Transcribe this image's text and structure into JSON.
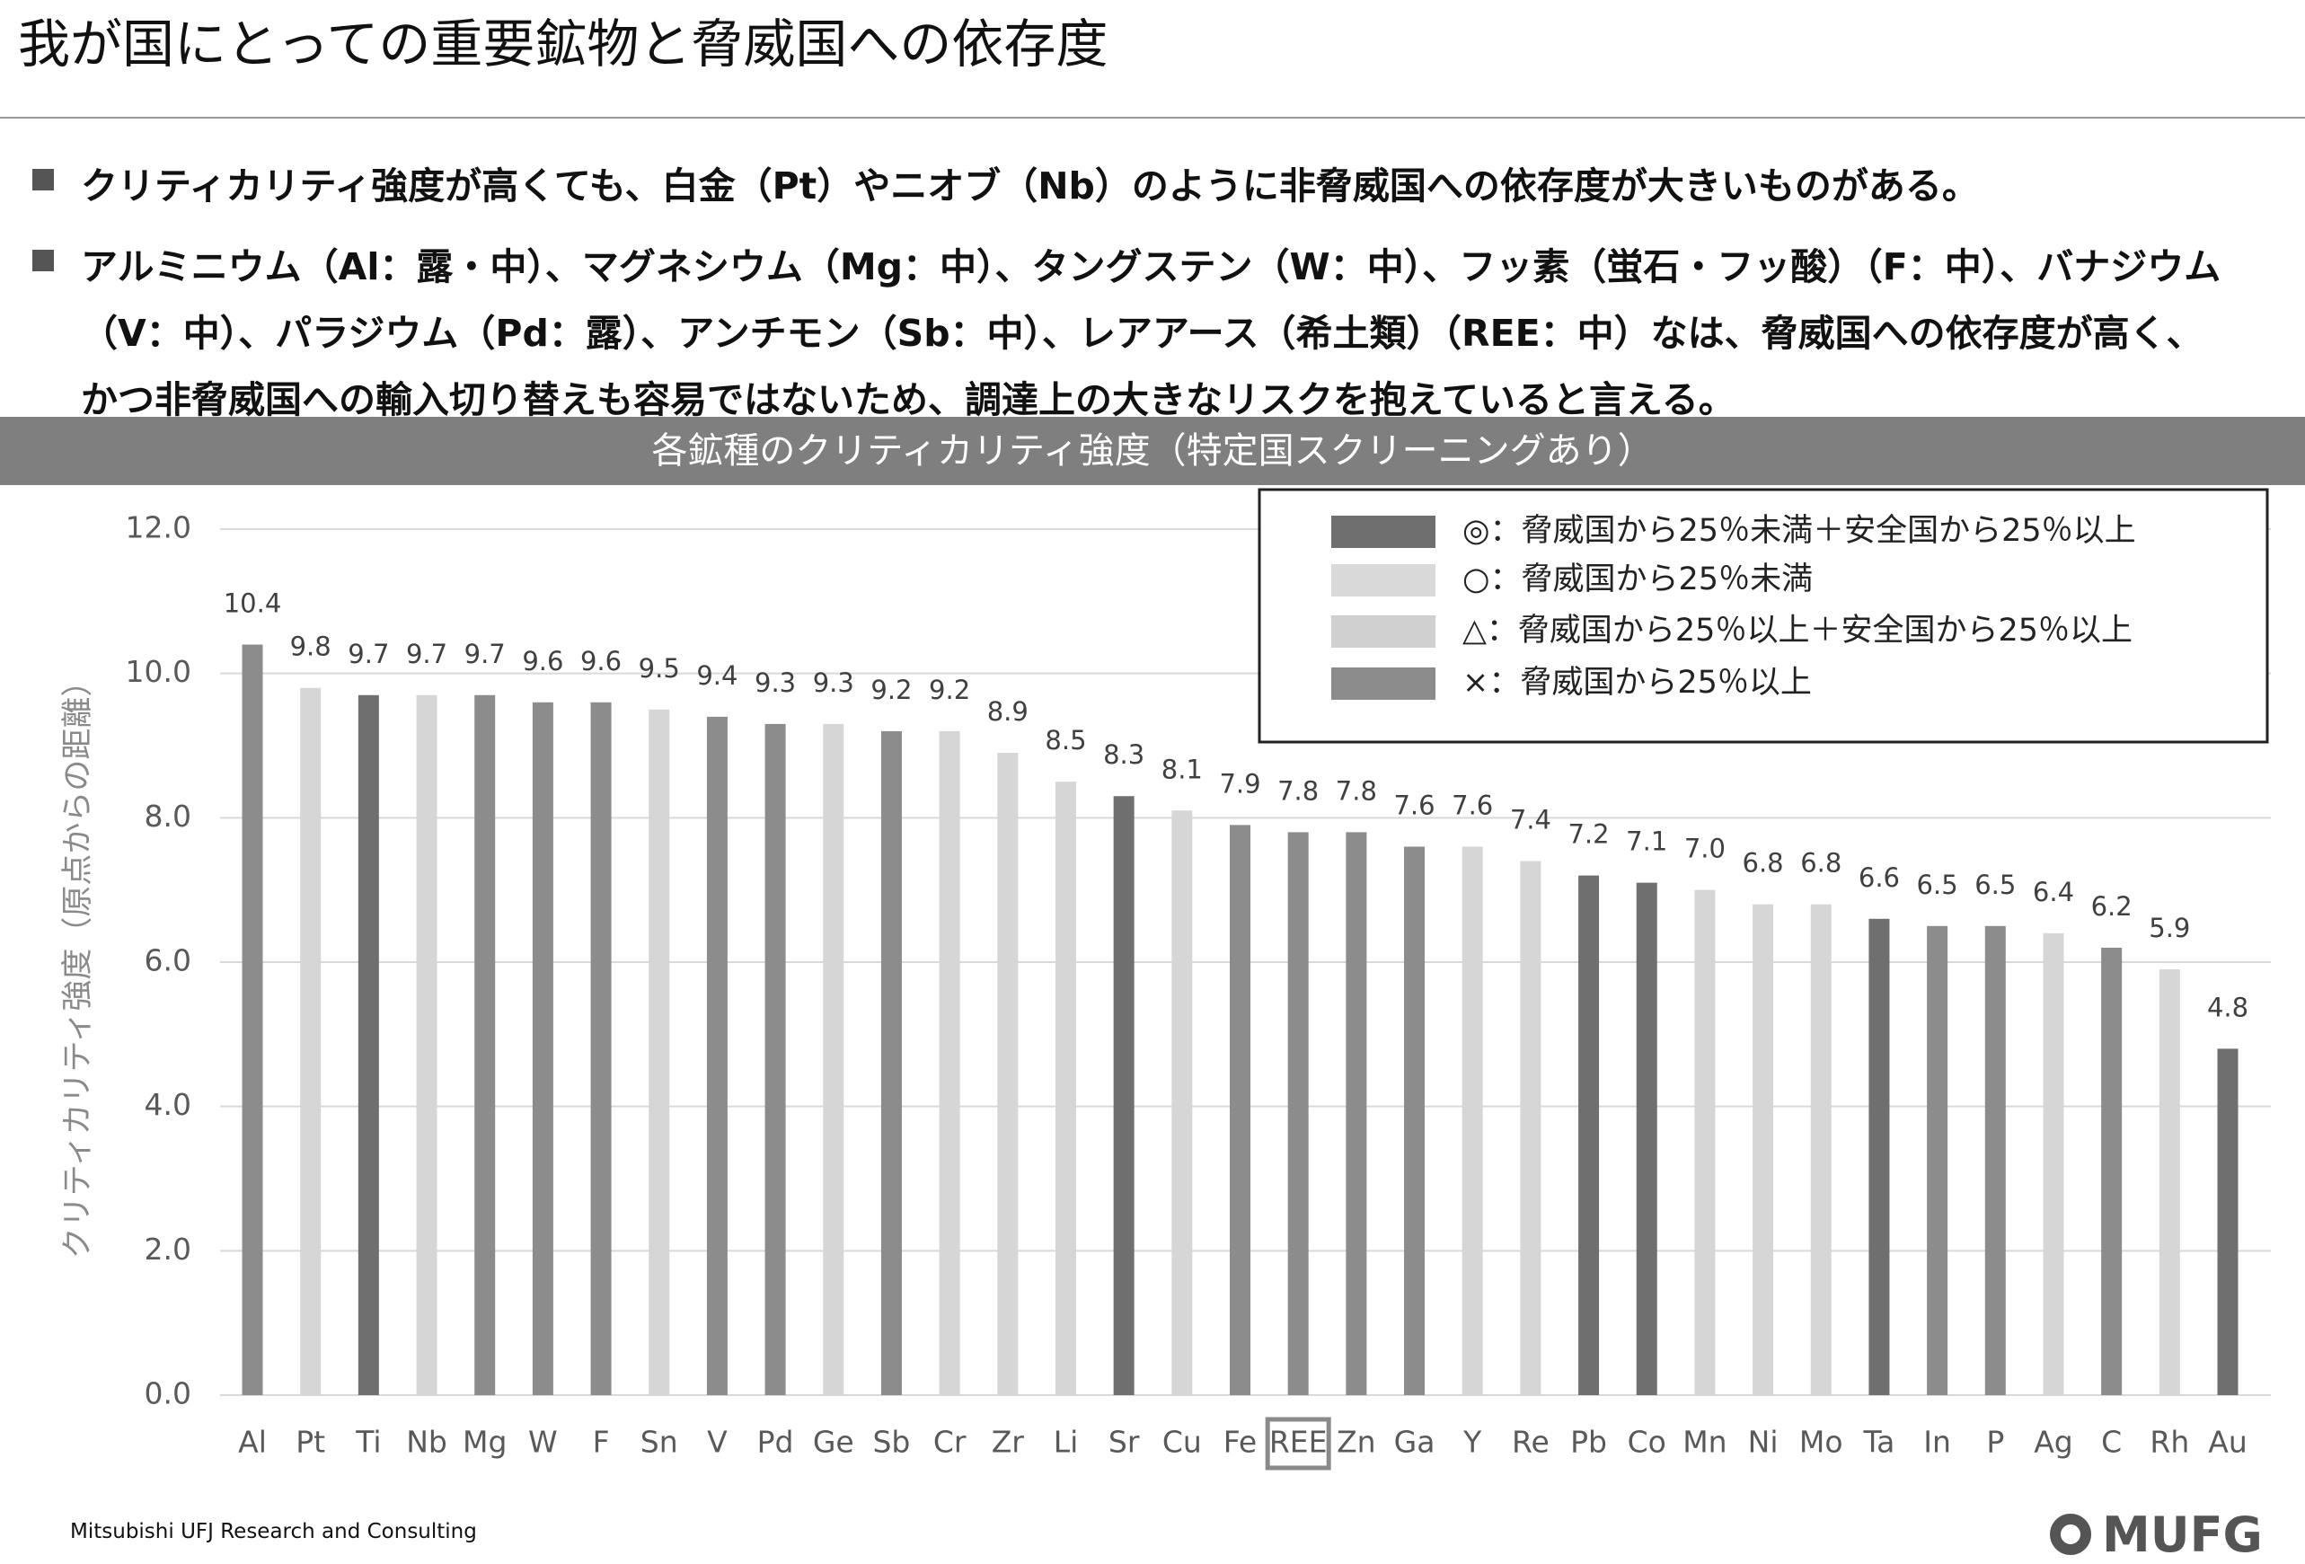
{
  "header": {
    "title": "我が国にとっての重要鉱物と脅威国への依存度"
  },
  "bullets": [
    {
      "lines": [
        "クリティカリティ強度が高くても、白金（Pt）やニオブ（Nb）のように非脅威国への依存度が大きいものがある。"
      ]
    },
    {
      "lines": [
        "アルミニウム（Al：露・中）、マグネシウム（Mg：中）、タングステン（W：中）、フッ素（蛍石・フッ酸）（F：中）、バナジウム",
        "（V：中）、パラジウム（Pd：露）、アンチモン（Sb：中）、レアアース（希土類）（REE：中）なは、脅威国への依存度が高く、",
        "かつ非脅威国への輸入切り替えも容易ではないため、調達上の大きなリスクを抱えていると言える。"
      ]
    }
  ],
  "chart_data": {
    "type": "bar",
    "title": "各鉱種のクリティカリティ強度（特定国スクリーニングあり）",
    "ylabel": "クリティカリティ強度（原点からの距離）",
    "categories": [
      "Al",
      "Pt",
      "Ti",
      "Nb",
      "Mg",
      "W",
      "F",
      "Sn",
      "V",
      "Pd",
      "Ge",
      "Sb",
      "Cr",
      "Zr",
      "Li",
      "Sr",
      "Cu",
      "Fe",
      "REE",
      "Zn",
      "Ga",
      "Y",
      "Re",
      "Pb",
      "Co",
      "Mn",
      "Ni",
      "Mo",
      "Ta",
      "In",
      "P",
      "Ag",
      "C",
      "Rh",
      "Au"
    ],
    "values": [
      10.4,
      9.8,
      9.7,
      9.7,
      9.7,
      9.6,
      9.6,
      9.5,
      9.4,
      9.3,
      9.3,
      9.2,
      9.2,
      8.9,
      8.5,
      8.3,
      8.1,
      7.9,
      7.8,
      7.8,
      7.6,
      7.6,
      7.4,
      7.2,
      7.1,
      7.0,
      6.8,
      6.8,
      6.6,
      6.5,
      6.5,
      6.4,
      6.2,
      5.9,
      4.8
    ],
    "value_labels": [
      "10.4",
      "9.8",
      "9.7",
      "9.7",
      "9.7",
      "9.6",
      "9.6",
      "9.5",
      "9.4",
      "9.3",
      "9.3",
      "9.2",
      "9.2",
      "8.9",
      "8.5",
      "8.3",
      "8.1",
      "7.9",
      "7.8",
      "7.8",
      "7.6",
      "7.6",
      "7.4",
      "7.2",
      "7.1",
      "7.0",
      "6.8",
      "6.8",
      "6.6",
      "6.5",
      "6.5",
      "6.4",
      "6.2",
      "5.9",
      "4.8"
    ],
    "colors": [
      "#8c8c8c",
      "#d6d6d6",
      "#6f6f6f",
      "#d6d6d6",
      "#8c8c8c",
      "#8c8c8c",
      "#8c8c8c",
      "#d6d6d6",
      "#8c8c8c",
      "#8c8c8c",
      "#d6d6d6",
      "#8c8c8c",
      "#d6d6d6",
      "#d6d6d6",
      "#d6d6d6",
      "#6f6f6f",
      "#d6d6d6",
      "#8c8c8c",
      "#8c8c8c",
      "#8c8c8c",
      "#8c8c8c",
      "#d6d6d6",
      "#d6d6d6",
      "#6f6f6f",
      "#6f6f6f",
      "#d6d6d6",
      "#d6d6d6",
      "#d6d6d6",
      "#6f6f6f",
      "#8c8c8c",
      "#8c8c8c",
      "#d6d6d6",
      "#8c8c8c",
      "#d6d6d6",
      "#6f6f6f"
    ],
    "highlight_index": 18,
    "ylim": [
      0,
      12
    ],
    "yticks": [
      {
        "value": 0,
        "label": "0.0"
      },
      {
        "value": 2,
        "label": "2.0"
      },
      {
        "value": 4,
        "label": "4.0"
      },
      {
        "value": 6,
        "label": "6.0"
      },
      {
        "value": 8,
        "label": "8.0"
      },
      {
        "value": 10,
        "label": "10.0"
      },
      {
        "value": 12,
        "label": "12.0"
      }
    ],
    "grid": true,
    "legend": [
      {
        "label": "◎：脅威国から25％未満＋安全国から25％以上",
        "color": "#6f6f6f"
      },
      {
        "label": "○：脅威国から25％未満",
        "color": "#d9d9d9"
      },
      {
        "label": "△：脅威国から25％以上＋安全国から25％以上",
        "color": "#d0d0d0"
      },
      {
        "label": "×：脅威国から25％以上",
        "color": "#8c8c8c"
      }
    ]
  },
  "footer": {
    "credit": "Mitsubishi UFJ Research and Consulting",
    "logo": "MUFG"
  }
}
